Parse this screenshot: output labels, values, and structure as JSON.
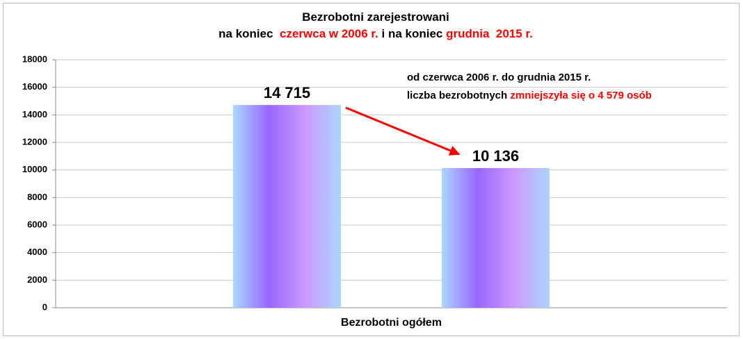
{
  "chart_data": {
    "type": "bar",
    "title": [
      [
        {
          "text": "Bezrobotni zarejestrowani",
          "color": "#000000"
        }
      ],
      [
        {
          "text": "na koniec  ",
          "color": "#000000"
        },
        {
          "text": "czerwca w 2006 r.",
          "color": "#ff0000"
        },
        {
          "text": " i na koniec ",
          "color": "#000000"
        },
        {
          "text": "grudnia  2015 r.",
          "color": "#ff0000"
        }
      ]
    ],
    "annotation": [
      [
        {
          "text": "od czerwca 2006 r. do grudnia 2015 r.",
          "color": "#000000"
        }
      ],
      [
        {
          "text": "liczba bezrobotnych ",
          "color": "#000000"
        },
        {
          "text": "zmniejszyła się o 4 579 osób",
          "color": "#ff0000"
        }
      ]
    ],
    "categories": [
      "Bezrobotni ogółem"
    ],
    "series": [
      {
        "color": [
          "#aad6ff",
          "#9966ff",
          "#cc99ff",
          "#aad6ff"
        ],
        "values": [
          14715
        ],
        "value_labels": [
          "14 715"
        ]
      },
      {
        "color": [
          "#aad6ff",
          "#9966ff",
          "#cc99ff",
          "#aad6ff"
        ],
        "values": [
          10136
        ],
        "value_labels": [
          "10 136"
        ]
      }
    ],
    "ylim": [
      0,
      18000
    ],
    "yticks": [
      0,
      2000,
      4000,
      6000,
      8000,
      10000,
      12000,
      14000,
      16000,
      18000
    ],
    "grid": true
  }
}
